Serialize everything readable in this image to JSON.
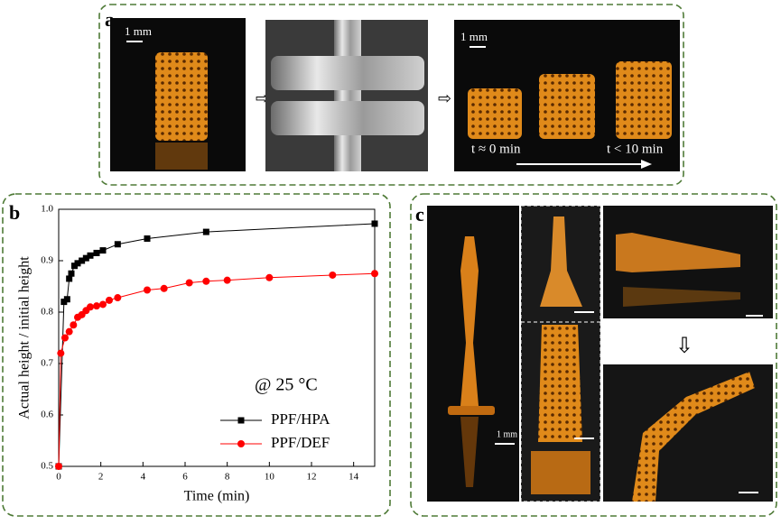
{
  "panels": {
    "a": "a",
    "b": "b",
    "c": "c"
  },
  "photo_text": {
    "a_scale_1": "1 mm",
    "a_scale_2": "1 mm",
    "a_time_start": "t ≈ 0 min",
    "a_time_end": "t < 10 min",
    "c_scale": "1 mm"
  },
  "chart_data": {
    "type": "line",
    "x_label": "Time (min)",
    "y_label": "Actual height / initial height",
    "annotation": "@ 25 °C",
    "xlim": [
      0,
      15
    ],
    "xticks": [
      0,
      2,
      4,
      6,
      8,
      10,
      12,
      14
    ],
    "ylim": [
      0.5,
      1.0
    ],
    "yticks": [
      0.5,
      0.6,
      0.7,
      0.8,
      0.9,
      {
        "value": 1.0,
        "label": "1.0"
      }
    ],
    "legend": "lower right",
    "series": [
      {
        "name": "PPF/HPA",
        "color": "#000000",
        "marker": "square",
        "x": [
          0,
          0.25,
          0.4,
          0.5,
          0.6,
          0.75,
          0.9,
          1.1,
          1.3,
          1.5,
          1.8,
          2.1,
          2.8,
          4.2,
          7,
          15
        ],
        "values": [
          0.5,
          0.82,
          0.825,
          0.865,
          0.875,
          0.89,
          0.895,
          0.9,
          0.905,
          0.91,
          0.915,
          0.92,
          0.932,
          0.943,
          0.956,
          0.972
        ]
      },
      {
        "name": "PPF/DEF",
        "color": "#ff0000",
        "marker": "circle",
        "x": [
          0,
          0.1,
          0.3,
          0.5,
          0.7,
          0.9,
          1.1,
          1.3,
          1.5,
          1.8,
          2.1,
          2.4,
          2.8,
          4.2,
          5,
          6.2,
          7,
          8,
          10,
          13,
          15
        ],
        "values": [
          0.5,
          0.72,
          0.75,
          0.762,
          0.775,
          0.79,
          0.795,
          0.803,
          0.81,
          0.812,
          0.815,
          0.823,
          0.828,
          0.843,
          0.846,
          0.857,
          0.86,
          0.862,
          0.867,
          0.872,
          0.875
        ]
      }
    ]
  }
}
